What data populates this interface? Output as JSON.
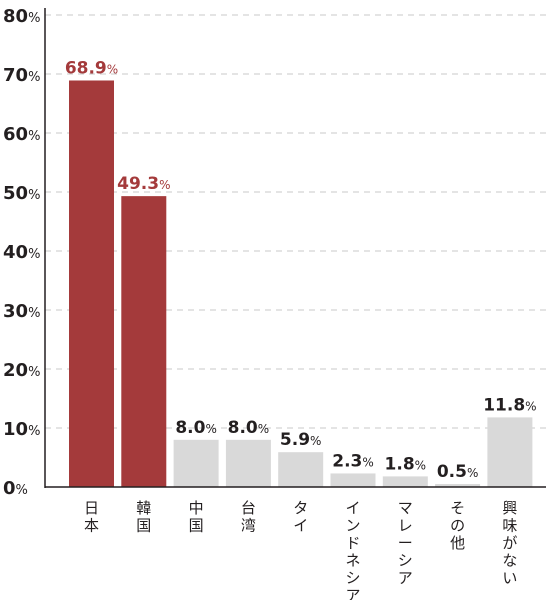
{
  "chart_data": {
    "type": "bar",
    "categories": [
      "日本",
      "韓国",
      "中国",
      "台湾",
      "タイ",
      "インドネシア",
      "マレーシア",
      "その他",
      "興味がない"
    ],
    "values": [
      68.9,
      49.3,
      8.0,
      8.0,
      5.9,
      2.3,
      1.8,
      0.5,
      11.8
    ],
    "value_labels": [
      "68.9",
      "49.3",
      "8.0",
      "8.0",
      "5.9",
      "2.3",
      "1.8",
      "0.5",
      "11.8"
    ],
    "value_unit": "%",
    "yticks": [
      "0",
      "10",
      "20",
      "30",
      "40",
      "50",
      "60",
      "70",
      "80"
    ],
    "ytick_unit": "%",
    "ylim": [
      0,
      80
    ],
    "grid": true,
    "title": "",
    "xlabel": "",
    "ylabel": "",
    "colors": {
      "highlight": "#a43a3b",
      "default": "#d9d9d9",
      "axis": "#231f20",
      "grid": "#c8c8c8",
      "highlight_label": "#a43a3b",
      "default_label": "#231f20"
    },
    "highlighted": [
      true,
      true,
      false,
      false,
      false,
      false,
      false,
      false,
      false
    ]
  }
}
